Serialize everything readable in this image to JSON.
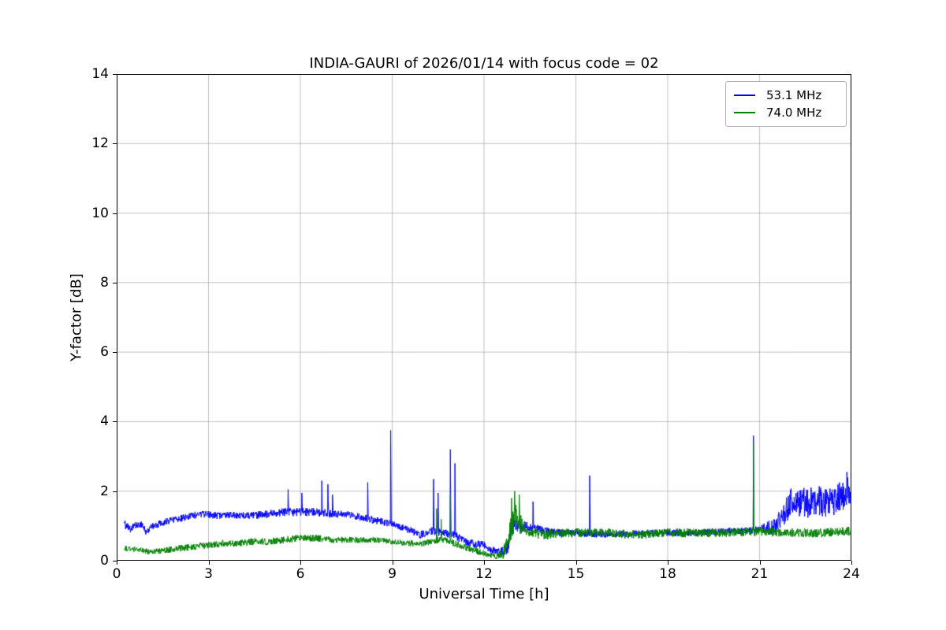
{
  "chart_data": {
    "type": "line",
    "title": "INDIA-GAURI of 2026/01/14 with focus code = 02",
    "xlabel": "Universal Time [h]",
    "ylabel": "Y-factor [dB]",
    "xlim": [
      0,
      24
    ],
    "ylim": [
      0,
      14
    ],
    "xticks": [
      0,
      3,
      6,
      9,
      12,
      15,
      18,
      21,
      24
    ],
    "yticks": [
      0,
      2,
      4,
      6,
      8,
      10,
      12,
      14
    ],
    "grid": true,
    "grid_color": "#b0b0b0",
    "legend_position": "upper right",
    "series": [
      {
        "name": "53.1 MHz",
        "color": "#0000ff",
        "x_start": 0.25,
        "x_end": 24.0,
        "baseline": [
          [
            0.25,
            1.05
          ],
          [
            0.45,
            0.9
          ],
          [
            0.6,
            1.0
          ],
          [
            0.8,
            1.05
          ],
          [
            0.95,
            0.85
          ],
          [
            1.2,
            1.0
          ],
          [
            1.5,
            1.1
          ],
          [
            2.0,
            1.2
          ],
          [
            2.5,
            1.3
          ],
          [
            2.8,
            1.35
          ],
          [
            3.2,
            1.3
          ],
          [
            3.6,
            1.3
          ],
          [
            4.0,
            1.3
          ],
          [
            4.5,
            1.3
          ],
          [
            5.0,
            1.35
          ],
          [
            5.5,
            1.4
          ],
          [
            6.0,
            1.4
          ],
          [
            6.5,
            1.4
          ],
          [
            7.0,
            1.35
          ],
          [
            7.5,
            1.35
          ],
          [
            8.0,
            1.25
          ],
          [
            8.5,
            1.15
          ],
          [
            9.0,
            1.05
          ],
          [
            9.5,
            0.9
          ],
          [
            9.9,
            0.75
          ],
          [
            10.3,
            0.85
          ],
          [
            10.7,
            0.8
          ],
          [
            11.0,
            0.75
          ],
          [
            11.3,
            0.6
          ],
          [
            11.6,
            0.5
          ],
          [
            12.0,
            0.45
          ],
          [
            12.2,
            0.35
          ],
          [
            12.5,
            0.25
          ],
          [
            12.75,
            0.3
          ],
          [
            12.9,
            0.9
          ],
          [
            13.05,
            1.05
          ],
          [
            13.3,
            1.0
          ],
          [
            13.6,
            0.95
          ],
          [
            14.0,
            0.85
          ],
          [
            14.5,
            0.8
          ],
          [
            15.0,
            0.8
          ],
          [
            16.0,
            0.75
          ],
          [
            17.0,
            0.78
          ],
          [
            18.0,
            0.8
          ],
          [
            19.0,
            0.8
          ],
          [
            20.0,
            0.85
          ],
          [
            20.5,
            0.85
          ],
          [
            21.0,
            0.9
          ],
          [
            21.4,
            0.95
          ],
          [
            21.7,
            1.3
          ],
          [
            22.0,
            1.65
          ],
          [
            22.5,
            1.65
          ],
          [
            23.0,
            1.7
          ],
          [
            23.5,
            1.75
          ],
          [
            24.0,
            2.0
          ]
        ],
        "noise": [
          [
            0.25,
            0.12
          ],
          [
            1.0,
            0.1
          ],
          [
            3.0,
            0.1
          ],
          [
            6.0,
            0.12
          ],
          [
            9.0,
            0.1
          ],
          [
            10.5,
            0.12
          ],
          [
            12.0,
            0.12
          ],
          [
            12.6,
            0.12
          ],
          [
            13.0,
            0.25
          ],
          [
            13.5,
            0.12
          ],
          [
            15.0,
            0.1
          ],
          [
            18.0,
            0.1
          ],
          [
            21.0,
            0.1
          ],
          [
            21.7,
            0.35
          ],
          [
            22.0,
            0.45
          ],
          [
            24.0,
            0.45
          ]
        ],
        "spikes": [
          [
            5.6,
            2.05
          ],
          [
            6.05,
            1.95
          ],
          [
            6.7,
            2.3
          ],
          [
            6.9,
            2.2
          ],
          [
            7.05,
            1.9
          ],
          [
            8.2,
            2.25
          ],
          [
            8.95,
            3.75
          ],
          [
            10.35,
            2.35
          ],
          [
            10.5,
            1.95
          ],
          [
            10.9,
            3.2
          ],
          [
            11.05,
            2.8
          ],
          [
            13.6,
            1.7
          ],
          [
            15.45,
            2.45
          ],
          [
            20.8,
            3.6
          ],
          [
            23.85,
            2.55
          ]
        ]
      },
      {
        "name": "74.0 MHz",
        "color": "#008000",
        "x_start": 0.25,
        "x_end": 24.0,
        "baseline": [
          [
            0.25,
            0.35
          ],
          [
            0.8,
            0.3
          ],
          [
            1.2,
            0.25
          ],
          [
            1.6,
            0.3
          ],
          [
            2.0,
            0.35
          ],
          [
            2.5,
            0.4
          ],
          [
            3.0,
            0.45
          ],
          [
            3.5,
            0.5
          ],
          [
            4.0,
            0.5
          ],
          [
            4.5,
            0.55
          ],
          [
            5.0,
            0.55
          ],
          [
            5.5,
            0.6
          ],
          [
            6.0,
            0.65
          ],
          [
            6.5,
            0.65
          ],
          [
            7.0,
            0.6
          ],
          [
            7.5,
            0.6
          ],
          [
            8.0,
            0.6
          ],
          [
            8.5,
            0.6
          ],
          [
            9.0,
            0.55
          ],
          [
            9.5,
            0.5
          ],
          [
            10.0,
            0.5
          ],
          [
            10.5,
            0.6
          ],
          [
            10.9,
            0.55
          ],
          [
            11.3,
            0.4
          ],
          [
            11.7,
            0.3
          ],
          [
            12.0,
            0.2
          ],
          [
            12.4,
            0.12
          ],
          [
            12.7,
            0.3
          ],
          [
            12.9,
            1.0
          ],
          [
            13.05,
            1.3
          ],
          [
            13.25,
            0.95
          ],
          [
            13.5,
            0.8
          ],
          [
            14.0,
            0.75
          ],
          [
            15.0,
            0.8
          ],
          [
            16.0,
            0.8
          ],
          [
            17.0,
            0.75
          ],
          [
            18.0,
            0.8
          ],
          [
            19.0,
            0.8
          ],
          [
            20.0,
            0.8
          ],
          [
            21.0,
            0.85
          ],
          [
            22.0,
            0.8
          ],
          [
            23.0,
            0.8
          ],
          [
            24.0,
            0.85
          ]
        ],
        "noise": [
          [
            0.25,
            0.08
          ],
          [
            3.0,
            0.1
          ],
          [
            6.0,
            0.1
          ],
          [
            9.0,
            0.08
          ],
          [
            11.0,
            0.1
          ],
          [
            12.4,
            0.08
          ],
          [
            13.0,
            0.4
          ],
          [
            13.5,
            0.15
          ],
          [
            15.0,
            0.13
          ],
          [
            18.0,
            0.13
          ],
          [
            21.0,
            0.13
          ],
          [
            24.0,
            0.13
          ]
        ],
        "spikes": [
          [
            10.45,
            1.5
          ],
          [
            10.6,
            1.2
          ],
          [
            10.9,
            1.9
          ],
          [
            12.9,
            1.8
          ],
          [
            13.0,
            2.0
          ],
          [
            13.15,
            1.9
          ],
          [
            20.8,
            3.4
          ]
        ]
      }
    ]
  }
}
